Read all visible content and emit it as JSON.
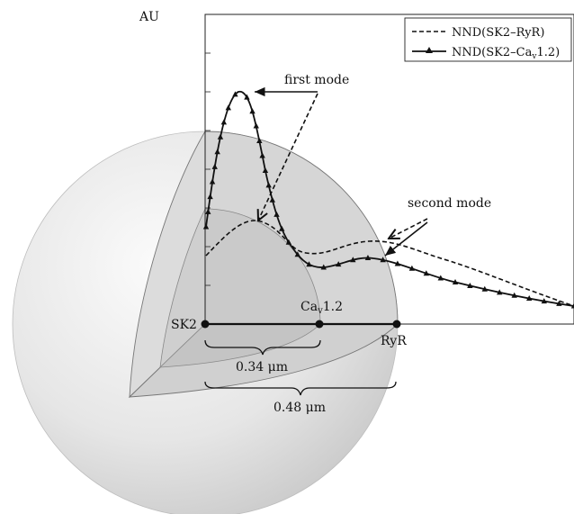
{
  "figure": {
    "y_axis_label": "AU",
    "legend": {
      "placement": "top-right",
      "entries": [
        {
          "name": "NND(SK2–RyR)",
          "style": "dashed"
        },
        {
          "name_prefix": "NND(SK2–Ca",
          "name_sub": "v",
          "name_suffix": "1.2)",
          "style": "solid-triangle"
        }
      ]
    },
    "annotations": {
      "first_mode": "first mode",
      "second_mode": "second mode"
    },
    "points": {
      "sk2": "SK2",
      "cav_prefix": "Ca",
      "cav_sub": "v",
      "cav_suffix": "1.2",
      "ryr": "RyR"
    },
    "distances": {
      "short": "0.34 μm",
      "long": "0.48 μm"
    },
    "colors": {
      "sphere_light": "#f4f4f4",
      "sphere_dark": "#cfcfcf",
      "cut_face": "#d9d9d9",
      "ink": "#111111"
    }
  }
}
